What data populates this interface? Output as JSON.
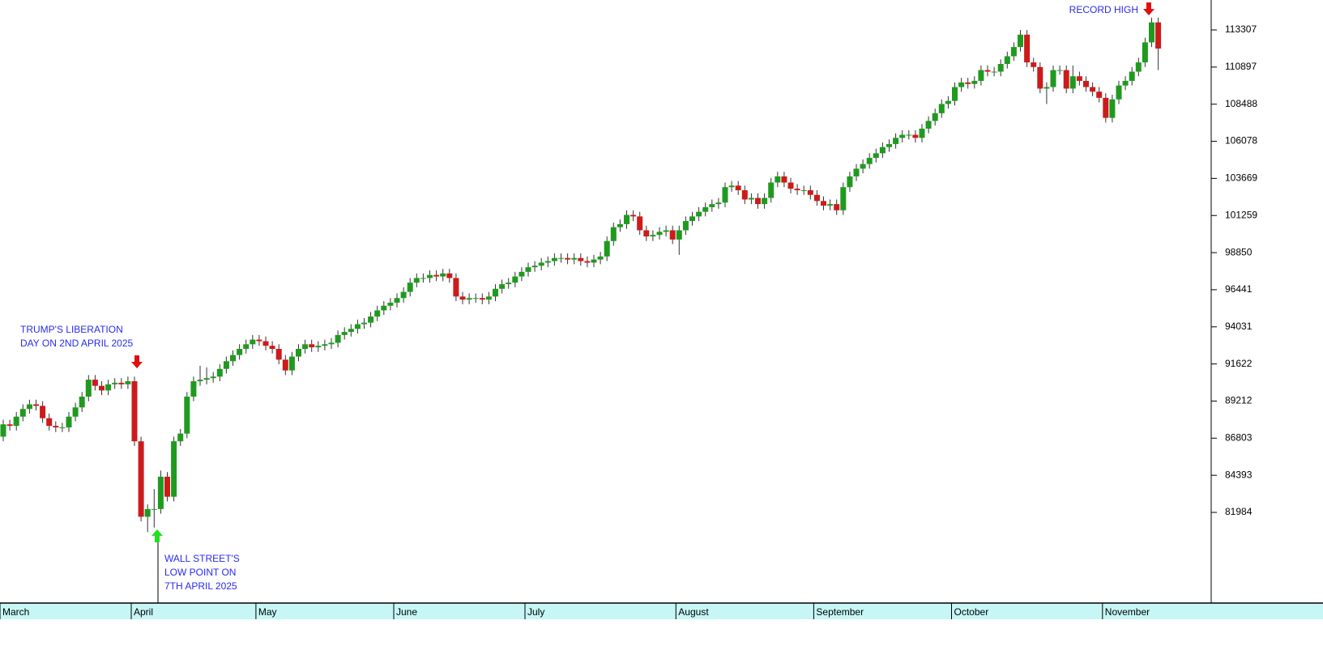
{
  "chart_data": {
    "type": "candlestick",
    "categories": [
      "March",
      null,
      null,
      null,
      null,
      null,
      null,
      null,
      null,
      null,
      null,
      null,
      null,
      null,
      null,
      null,
      null,
      null,
      null,
      null,
      "April",
      null,
      null,
      null,
      null,
      null,
      null,
      null,
      null,
      null,
      null,
      null,
      null,
      null,
      null,
      null,
      null,
      null,
      null,
      "May",
      null,
      null,
      null,
      null,
      null,
      null,
      null,
      null,
      null,
      null,
      null,
      null,
      null,
      null,
      null,
      null,
      null,
      null,
      null,
      null,
      "June",
      null,
      null,
      null,
      null,
      null,
      null,
      null,
      null,
      null,
      null,
      null,
      null,
      null,
      null,
      null,
      null,
      null,
      null,
      null,
      "July",
      null,
      null,
      null,
      null,
      null,
      null,
      null,
      null,
      null,
      null,
      null,
      null,
      null,
      null,
      null,
      null,
      null,
      null,
      null,
      null,
      null,
      null,
      "August",
      null,
      null,
      null,
      null,
      null,
      null,
      null,
      null,
      null,
      null,
      null,
      null,
      null,
      null,
      null,
      null,
      null,
      null,
      null,
      null,
      "September",
      null,
      null,
      null,
      null,
      null,
      null,
      null,
      null,
      null,
      null,
      null,
      null,
      null,
      null,
      null,
      null,
      null,
      null,
      null,
      null,
      "October",
      null,
      null,
      null,
      null,
      null,
      null,
      null,
      null,
      null,
      null,
      null,
      null,
      null,
      null,
      null,
      null,
      null,
      null,
      null,
      null,
      null,
      null,
      "November",
      null,
      null,
      null,
      null,
      null,
      null,
      null,
      null
    ],
    "open": [
      86900,
      87700,
      87600,
      88200,
      88700,
      89000,
      88900,
      88100,
      87600,
      87500,
      87500,
      88200,
      88800,
      89500,
      90600,
      90200,
      89900,
      90300,
      90400,
      90300,
      90500,
      86600,
      81700,
      82200,
      82200,
      84300,
      83000,
      86600,
      87100,
      89500,
      90500,
      90600,
      90700,
      90800,
      91300,
      91800,
      92200,
      92600,
      92900,
      93200,
      93100,
      92800,
      92600,
      91900,
      91200,
      92100,
      92600,
      92900,
      92700,
      92800,
      92900,
      93000,
      93500,
      93700,
      93900,
      94200,
      94300,
      94700,
      95100,
      95400,
      95600,
      95900,
      96300,
      96900,
      97200,
      97200,
      97400,
      97300,
      97500,
      97200,
      96000,
      95800,
      95900,
      95900,
      95800,
      96000,
      96500,
      96800,
      96900,
      97300,
      97600,
      97900,
      98000,
      98200,
      98300,
      98500,
      98500,
      98400,
      98500,
      98300,
      98200,
      98400,
      98600,
      99600,
      100500,
      100700,
      101300,
      101200,
      100300,
      99900,
      100000,
      100200,
      100300,
      99700,
      100300,
      100900,
      101200,
      101500,
      101800,
      102000,
      102100,
      103100,
      103200,
      102900,
      102300,
      102400,
      102000,
      102400,
      103400,
      103800,
      103400,
      103000,
      102900,
      102900,
      102600,
      102200,
      101900,
      102000,
      101600,
      103100,
      103800,
      104300,
      104600,
      105000,
      105300,
      105700,
      105900,
      106300,
      106500,
      106500,
      106300,
      106900,
      107400,
      107900,
      108500,
      108700,
      109600,
      109900,
      109800,
      110000,
      110700,
      110600,
      110600,
      111100,
      111600,
      112200,
      113000,
      111200,
      110900,
      109500,
      109600,
      110700,
      110700,
      109500,
      110300,
      110000,
      109600,
      109300,
      108900,
      107600,
      108800,
      109700,
      110000,
      110600,
      111200,
      112500,
      113800
    ],
    "high": [
      88000,
      88000,
      88500,
      89000,
      89300,
      89300,
      89200,
      88400,
      87900,
      87800,
      88500,
      89100,
      89800,
      90900,
      90900,
      90500,
      90600,
      90700,
      90700,
      90800,
      90800,
      86900,
      82500,
      83500,
      84700,
      84600,
      86900,
      87400,
      89800,
      90800,
      91500,
      91400,
      91100,
      91600,
      92100,
      92500,
      92900,
      93200,
      93500,
      93500,
      93400,
      93100,
      92900,
      92200,
      92400,
      92900,
      93200,
      93200,
      93100,
      93200,
      93300,
      93800,
      94000,
      94200,
      94500,
      94600,
      95000,
      95400,
      95700,
      95900,
      96200,
      96600,
      97200,
      97500,
      97500,
      97700,
      97700,
      97800,
      97800,
      97500,
      96300,
      96200,
      96200,
      96200,
      96300,
      96800,
      97100,
      97200,
      97600,
      97900,
      98200,
      98300,
      98500,
      98600,
      98800,
      98800,
      98800,
      98800,
      98800,
      98600,
      98700,
      98900,
      99900,
      100800,
      101000,
      101600,
      101600,
      101500,
      100600,
      100300,
      100500,
      100600,
      100600,
      100600,
      101200,
      101500,
      101800,
      102100,
      102300,
      102400,
      103400,
      103500,
      103500,
      103200,
      102700,
      102700,
      102700,
      103700,
      104100,
      104100,
      103700,
      103300,
      103200,
      103200,
      102900,
      102500,
      102300,
      102300,
      103400,
      104100,
      104600,
      104900,
      105300,
      105600,
      106000,
      106200,
      106600,
      106800,
      106800,
      106800,
      107200,
      107700,
      108200,
      108800,
      109000,
      109900,
      110200,
      110200,
      110300,
      111000,
      111000,
      110900,
      111400,
      111900,
      112500,
      113300,
      113300,
      111500,
      111200,
      109900,
      111000,
      111000,
      111000,
      111000,
      110600,
      110300,
      109900,
      109600,
      109200,
      109100,
      110000,
      110300,
      110900,
      111500,
      112800,
      114100,
      114100
    ],
    "low": [
      86600,
      87300,
      87300,
      87900,
      88400,
      88600,
      87800,
      87300,
      87200,
      87200,
      87200,
      87900,
      88500,
      89200,
      89900,
      89600,
      89600,
      90000,
      90000,
      90000,
      86300,
      81400,
      80700,
      81000,
      81900,
      82700,
      82700,
      86300,
      86800,
      89200,
      90200,
      90300,
      90400,
      90500,
      91000,
      91500,
      91900,
      92300,
      92600,
      92800,
      92500,
      92300,
      91600,
      90900,
      90900,
      91800,
      92300,
      92400,
      92400,
      92500,
      92600,
      92700,
      93200,
      93400,
      93600,
      93900,
      94000,
      94400,
      94800,
      95100,
      95300,
      95600,
      96000,
      96600,
      96900,
      96900,
      97000,
      97000,
      96900,
      95700,
      95500,
      95500,
      95600,
      95500,
      95500,
      95700,
      96200,
      96500,
      96600,
      97000,
      97300,
      97600,
      97700,
      97900,
      98000,
      98200,
      98100,
      98100,
      98000,
      97900,
      97900,
      98100,
      98300,
      99300,
      100200,
      100400,
      100900,
      100000,
      99600,
      99600,
      99700,
      99900,
      99400,
      98700,
      100000,
      100600,
      100900,
      101200,
      101500,
      101700,
      101800,
      102800,
      102600,
      102000,
      102000,
      101700,
      101700,
      102100,
      103100,
      103100,
      102700,
      102600,
      102600,
      102300,
      101900,
      101600,
      101600,
      101300,
      101300,
      102800,
      103500,
      104000,
      104300,
      104700,
      105000,
      105400,
      105600,
      106000,
      106200,
      106000,
      106000,
      106600,
      107100,
      107600,
      108200,
      108400,
      109300,
      109500,
      109500,
      109700,
      110300,
      110300,
      110300,
      110800,
      111300,
      111900,
      110900,
      110600,
      109200,
      108500,
      109300,
      110400,
      109200,
      109200,
      109700,
      109300,
      109000,
      108600,
      107300,
      107300,
      108500,
      109400,
      109700,
      110300,
      110900,
      112200,
      110700
    ],
    "close": [
      87700,
      87600,
      88200,
      88700,
      89000,
      88900,
      88100,
      87600,
      87500,
      87500,
      88200,
      88800,
      89500,
      90600,
      90200,
      89900,
      90300,
      90400,
      90300,
      90500,
      86600,
      81700,
      82200,
      82200,
      84300,
      83000,
      86600,
      87100,
      89500,
      90500,
      90600,
      90700,
      90800,
      91300,
      91800,
      92200,
      92600,
      92900,
      93200,
      93100,
      92800,
      92600,
      91900,
      91200,
      92100,
      92600,
      92900,
      92700,
      92800,
      92900,
      93000,
      93500,
      93700,
      93900,
      94200,
      94300,
      94700,
      95100,
      95400,
      95600,
      95900,
      96300,
      96900,
      97200,
      97200,
      97400,
      97300,
      97500,
      97200,
      96000,
      95800,
      95900,
      95900,
      95800,
      96000,
      96500,
      96800,
      96900,
      97300,
      97600,
      97900,
      98000,
      98200,
      98300,
      98500,
      98500,
      98400,
      98500,
      98300,
      98200,
      98400,
      98600,
      99600,
      100500,
      100700,
      101300,
      101200,
      100300,
      99900,
      100000,
      100200,
      100300,
      99700,
      100300,
      100900,
      101200,
      101500,
      101800,
      102000,
      102100,
      103100,
      103200,
      102900,
      102300,
      102400,
      102000,
      102400,
      103400,
      103800,
      103400,
      103000,
      102900,
      102900,
      102600,
      102200,
      101900,
      102000,
      101600,
      103100,
      103800,
      104300,
      104600,
      105000,
      105300,
      105700,
      105900,
      106300,
      106500,
      106500,
      106300,
      106900,
      107400,
      107900,
      108500,
      108700,
      109600,
      109900,
      109800,
      110000,
      110700,
      110600,
      110600,
      111100,
      111600,
      112200,
      113000,
      111200,
      110900,
      109500,
      109600,
      110700,
      110700,
      109500,
      110300,
      110000,
      109600,
      109300,
      108900,
      107600,
      108800,
      109700,
      110000,
      110600,
      111200,
      112500,
      113800,
      112100
    ],
    "up_color": "#1f9a1f",
    "down_color": "#cc1b1b",
    "ylim": [
      76097,
      115252
    ],
    "yticks": [
      81984,
      84393,
      86803,
      89212,
      91622,
      94031,
      96441,
      98850,
      101259,
      103669,
      106078,
      108488,
      110897,
      113307
    ],
    "annotations": [
      {
        "lines": [
          "TRUMP'S LIBERATION",
          "DAY ON 2ND APRIL 2025"
        ]
      },
      {
        "lines": [
          "WALL STREET'S",
          "LOW POINT ON",
          "7TH APRIL 2025"
        ]
      },
      {
        "lines": [
          "RECORD HIGH"
        ]
      }
    ]
  }
}
